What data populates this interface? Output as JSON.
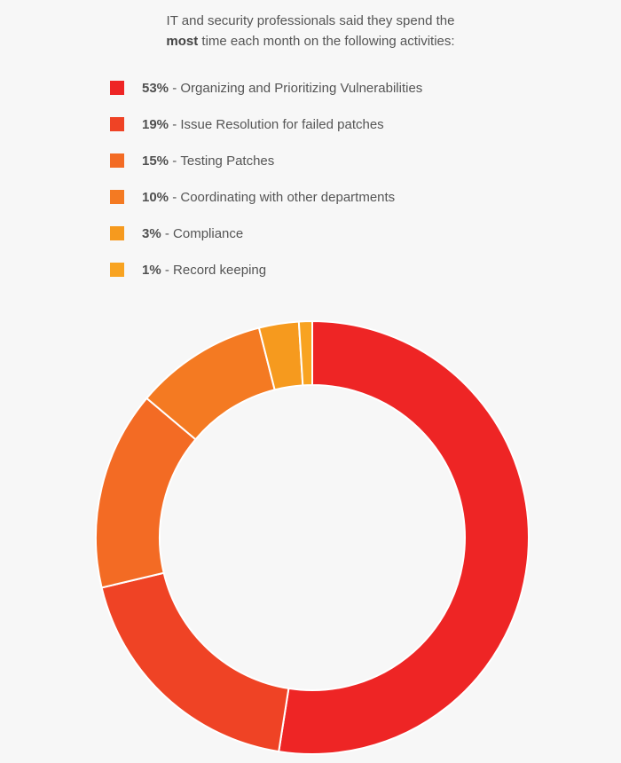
{
  "chart_data": {
    "type": "pie",
    "subtitle_line1": "IT and security professionals said they spend the",
    "subtitle_line2_bold": "most",
    "subtitle_line2_rest": " time each month on the following activities:",
    "categories": [
      "Organizing and Prioritizing Vulnerabilities",
      "Issue Resolution for failed patches",
      "Testing Patches",
      "Coordinating with other departments",
      "Compliance",
      "Record keeping"
    ],
    "values": [
      53,
      19,
      15,
      10,
      3,
      1
    ],
    "value_labels": [
      "53%",
      "19%",
      "15%",
      "10%",
      "3%",
      "1%"
    ],
    "colors": [
      "#ee2525",
      "#ef4325",
      "#f36b24",
      "#f47a22",
      "#f69a1e",
      "#f8a321"
    ],
    "legend_position": "top",
    "donut": true,
    "grid": false
  }
}
